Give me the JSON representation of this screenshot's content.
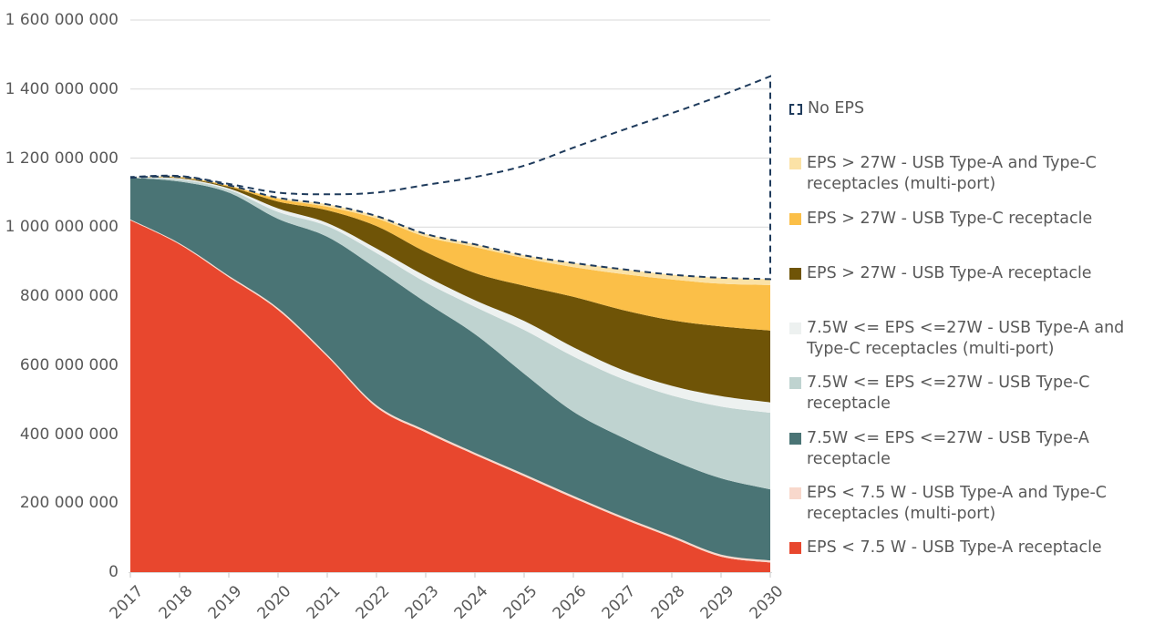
{
  "chart_data": {
    "type": "area",
    "stacked": true,
    "x": [
      2017,
      2018,
      2019,
      2020,
      2021,
      2022,
      2023,
      2024,
      2025,
      2026,
      2027,
      2028,
      2029,
      2030
    ],
    "xtick_labels": [
      "2017",
      "2018",
      "2019",
      "2020",
      "2021",
      "2022",
      "2023",
      "2024",
      "2025",
      "2026",
      "2027",
      "2028",
      "2029",
      "2030"
    ],
    "ylim": [
      0,
      1600000000
    ],
    "ytick_step": 200000000,
    "ytick_labels": [
      "1 600 000 000",
      "1 400 000 000",
      "1 200 000 000",
      "1 000 000 000",
      "800 000 000",
      "600 000 000",
      "400 000 000",
      "200 000 000",
      "0"
    ],
    "grid": true,
    "legend_position": "right",
    "series": [
      {
        "name": "EPS < 7.5 W - USB Type-A receptacle",
        "color": "#E8472E",
        "values": [
          1020000000,
          950000000,
          855000000,
          760000000,
          625000000,
          478000000,
          405000000,
          340000000,
          278000000,
          215000000,
          155000000,
          100000000,
          45000000,
          28000000
        ]
      },
      {
        "name": "EPS < 7.5 W - USB Type-A and Type-C receptacles (multi-port)",
        "color": "#F8D8CC",
        "values": [
          2000000,
          3000000,
          4000000,
          5000000,
          5000000,
          6000000,
          6000000,
          6000000,
          6000000,
          6000000,
          6000000,
          6000000,
          6000000,
          6000000
        ]
      },
      {
        "name": "7.5W <= EPS <=27W - USB Type-A receptacle",
        "color": "#4A7475",
        "values": [
          121000000,
          179000000,
          241000000,
          259000000,
          342000000,
          396000000,
          371000000,
          344000000,
          291000000,
          244000000,
          229000000,
          219000000,
          221000000,
          206000000
        ]
      },
      {
        "name": "7.5W <= EPS <=27W - USB Type-C receptacle",
        "color": "#BFD3D0",
        "values": [
          0,
          6000000,
          8000000,
          20000000,
          31000000,
          45000000,
          58000000,
          79000000,
          127000000,
          160000000,
          170000000,
          187000000,
          208000000,
          222000000
        ]
      },
      {
        "name": "7.5W <= EPS <=27W - USB Type-A and Type-C receptacles (multi-port)",
        "color": "#EDF1F0",
        "values": [
          0,
          3000000,
          4000000,
          10000000,
          9000000,
          13000000,
          18000000,
          19000000,
          26000000,
          27000000,
          26000000,
          28000000,
          30000000,
          30000000
        ]
      },
      {
        "name": "EPS > 27W - USB Type-A receptacle",
        "color": "#6F5407",
        "values": [
          0,
          2000000,
          5000000,
          20000000,
          37000000,
          65000000,
          70000000,
          79000000,
          102000000,
          146000000,
          174000000,
          190000000,
          202000000,
          208000000
        ]
      },
      {
        "name": "EPS > 27W - USB Type-C receptacle",
        "color": "#FBBF48",
        "values": [
          0,
          2000000,
          3000000,
          8000000,
          10000000,
          22000000,
          44000000,
          75000000,
          80000000,
          86000000,
          104000000,
          118000000,
          124000000,
          132000000
        ]
      },
      {
        "name": "EPS > 27W - USB Type-A and Type-C receptacles (multi-port)",
        "color": "#FBE2A6",
        "values": [
          0,
          1000000,
          1000000,
          3000000,
          7000000,
          7000000,
          8000000,
          8000000,
          8000000,
          12000000,
          14000000,
          14000000,
          17000000,
          17000000
        ]
      }
    ],
    "no_eps_series": {
      "name": "No EPS",
      "color": "#1F3B5C",
      "line_style": "dashed",
      "values": [
        2000000,
        2000000,
        4000000,
        15000000,
        29000000,
        68000000,
        142000000,
        195000000,
        260000000,
        334000000,
        403000000,
        468000000,
        528000000,
        588000000
      ]
    },
    "colors": {
      "grid": "#D9D9D9",
      "axis_text": "#595959"
    }
  },
  "legend": {
    "items": [
      {
        "label": "No EPS",
        "color": "#1F3B5C",
        "swatch": "dashed-outline"
      },
      {
        "label": "EPS > 27W - USB Type-A and Type-C receptacles (multi-port)",
        "color": "#FBE2A6",
        "swatch": "fill"
      },
      {
        "label": "EPS > 27W - USB Type-C receptacle",
        "color": "#FBBF48",
        "swatch": "fill"
      },
      {
        "label": "EPS > 27W - USB Type-A receptacle",
        "color": "#6F5407",
        "swatch": "fill"
      },
      {
        "label": "7.5W <= EPS <=27W - USB Type-A and Type-C receptacles (multi-port)",
        "color": "#EDF1F0",
        "swatch": "fill"
      },
      {
        "label": "7.5W <= EPS <=27W - USB Type-C receptacle",
        "color": "#BFD3D0",
        "swatch": "fill"
      },
      {
        "label": "7.5W <= EPS <=27W - USB Type-A receptacle",
        "color": "#4A7475",
        "swatch": "fill"
      },
      {
        "label": "EPS < 7.5 W - USB Type-A and Type-C receptacles (multi-port)",
        "color": "#F8D8CC",
        "swatch": "fill"
      },
      {
        "label": "EPS < 7.5 W - USB Type-A receptacle",
        "color": "#E8472E",
        "swatch": "fill"
      }
    ]
  }
}
